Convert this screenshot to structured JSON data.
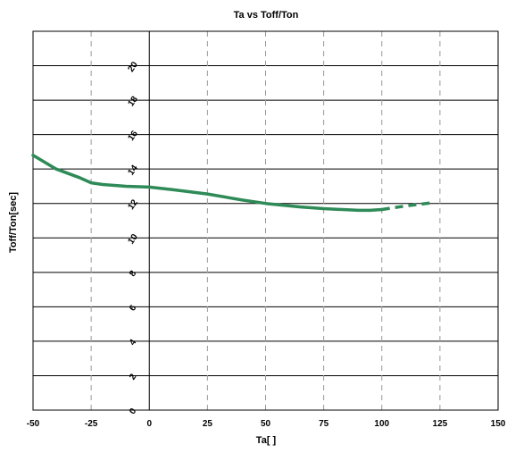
{
  "chart_data": {
    "type": "line",
    "title": "Ta vs Toff/Ton",
    "xlabel": "Ta[    ]",
    "ylabel": "Toff/Ton[sec]",
    "xlim": [
      -50,
      150
    ],
    "ylim": [
      0,
      22
    ],
    "xticks": [
      -50,
      -25,
      0,
      25,
      50,
      75,
      100,
      125,
      150
    ],
    "yticks": [
      0,
      2,
      4,
      6,
      8,
      10,
      12,
      14,
      16,
      18,
      20
    ],
    "xtick_labels": [
      "-50",
      "-25",
      "0",
      "25",
      "50",
      "75",
      "100",
      "125",
      "150"
    ],
    "ytick_labels": [
      "0",
      "2",
      "4",
      "6",
      "8",
      "10",
      "12",
      "14",
      "16",
      "18",
      "20"
    ],
    "grid": {
      "horizontal": "solid",
      "vertical": "dashed"
    },
    "series": [
      {
        "style": "solid",
        "color": "#2e8b57",
        "x": [
          -50,
          -40,
          -30,
          -25,
          -20,
          -10,
          0,
          10,
          25,
          40,
          50,
          65,
          75,
          90,
          95,
          100
        ],
        "y": [
          14.8,
          14.0,
          13.5,
          13.2,
          13.1,
          13.0,
          12.95,
          12.8,
          12.55,
          12.2,
          12.0,
          11.8,
          11.7,
          11.6,
          11.6,
          11.65
        ]
      },
      {
        "style": "dashed",
        "color": "#2e8b57",
        "x": [
          100,
          110,
          122
        ],
        "y": [
          11.65,
          11.85,
          12.05
        ]
      }
    ]
  }
}
